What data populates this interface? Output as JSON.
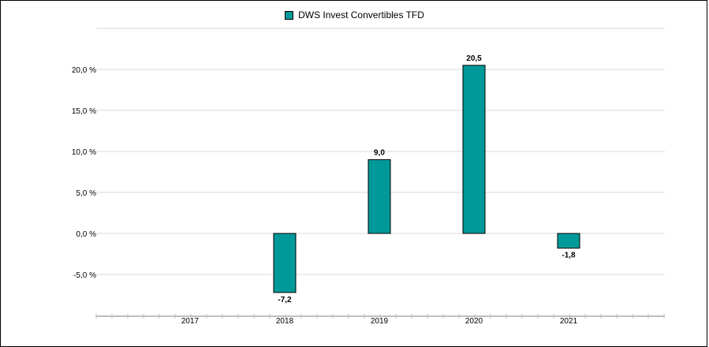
{
  "chart_data": {
    "type": "bar",
    "categories": [
      "2017",
      "2018",
      "2019",
      "2020",
      "2021"
    ],
    "series": [
      {
        "name": "DWS Invest Convertibles  TFD",
        "values": [
          null,
          -7.2,
          9.0,
          20.5,
          -1.8
        ],
        "data_labels": [
          "",
          "-7,2",
          "9,0",
          "20,5",
          "-1,8"
        ]
      }
    ],
    "y_ticks": [
      20,
      15,
      10,
      5,
      0,
      -5
    ],
    "y_tick_labels": [
      "20,0 %",
      "15,0 %",
      "10,0 %",
      "5,0 %",
      "0,0 %",
      "-5,0 %"
    ],
    "ylim": [
      -10,
      25
    ],
    "grid": true,
    "legend_position": "top-center"
  },
  "colors": {
    "bar_fill": "#009999",
    "bar_stroke": "#000000",
    "grid": "#d9d9d9",
    "axis": "#bfbfbf"
  }
}
